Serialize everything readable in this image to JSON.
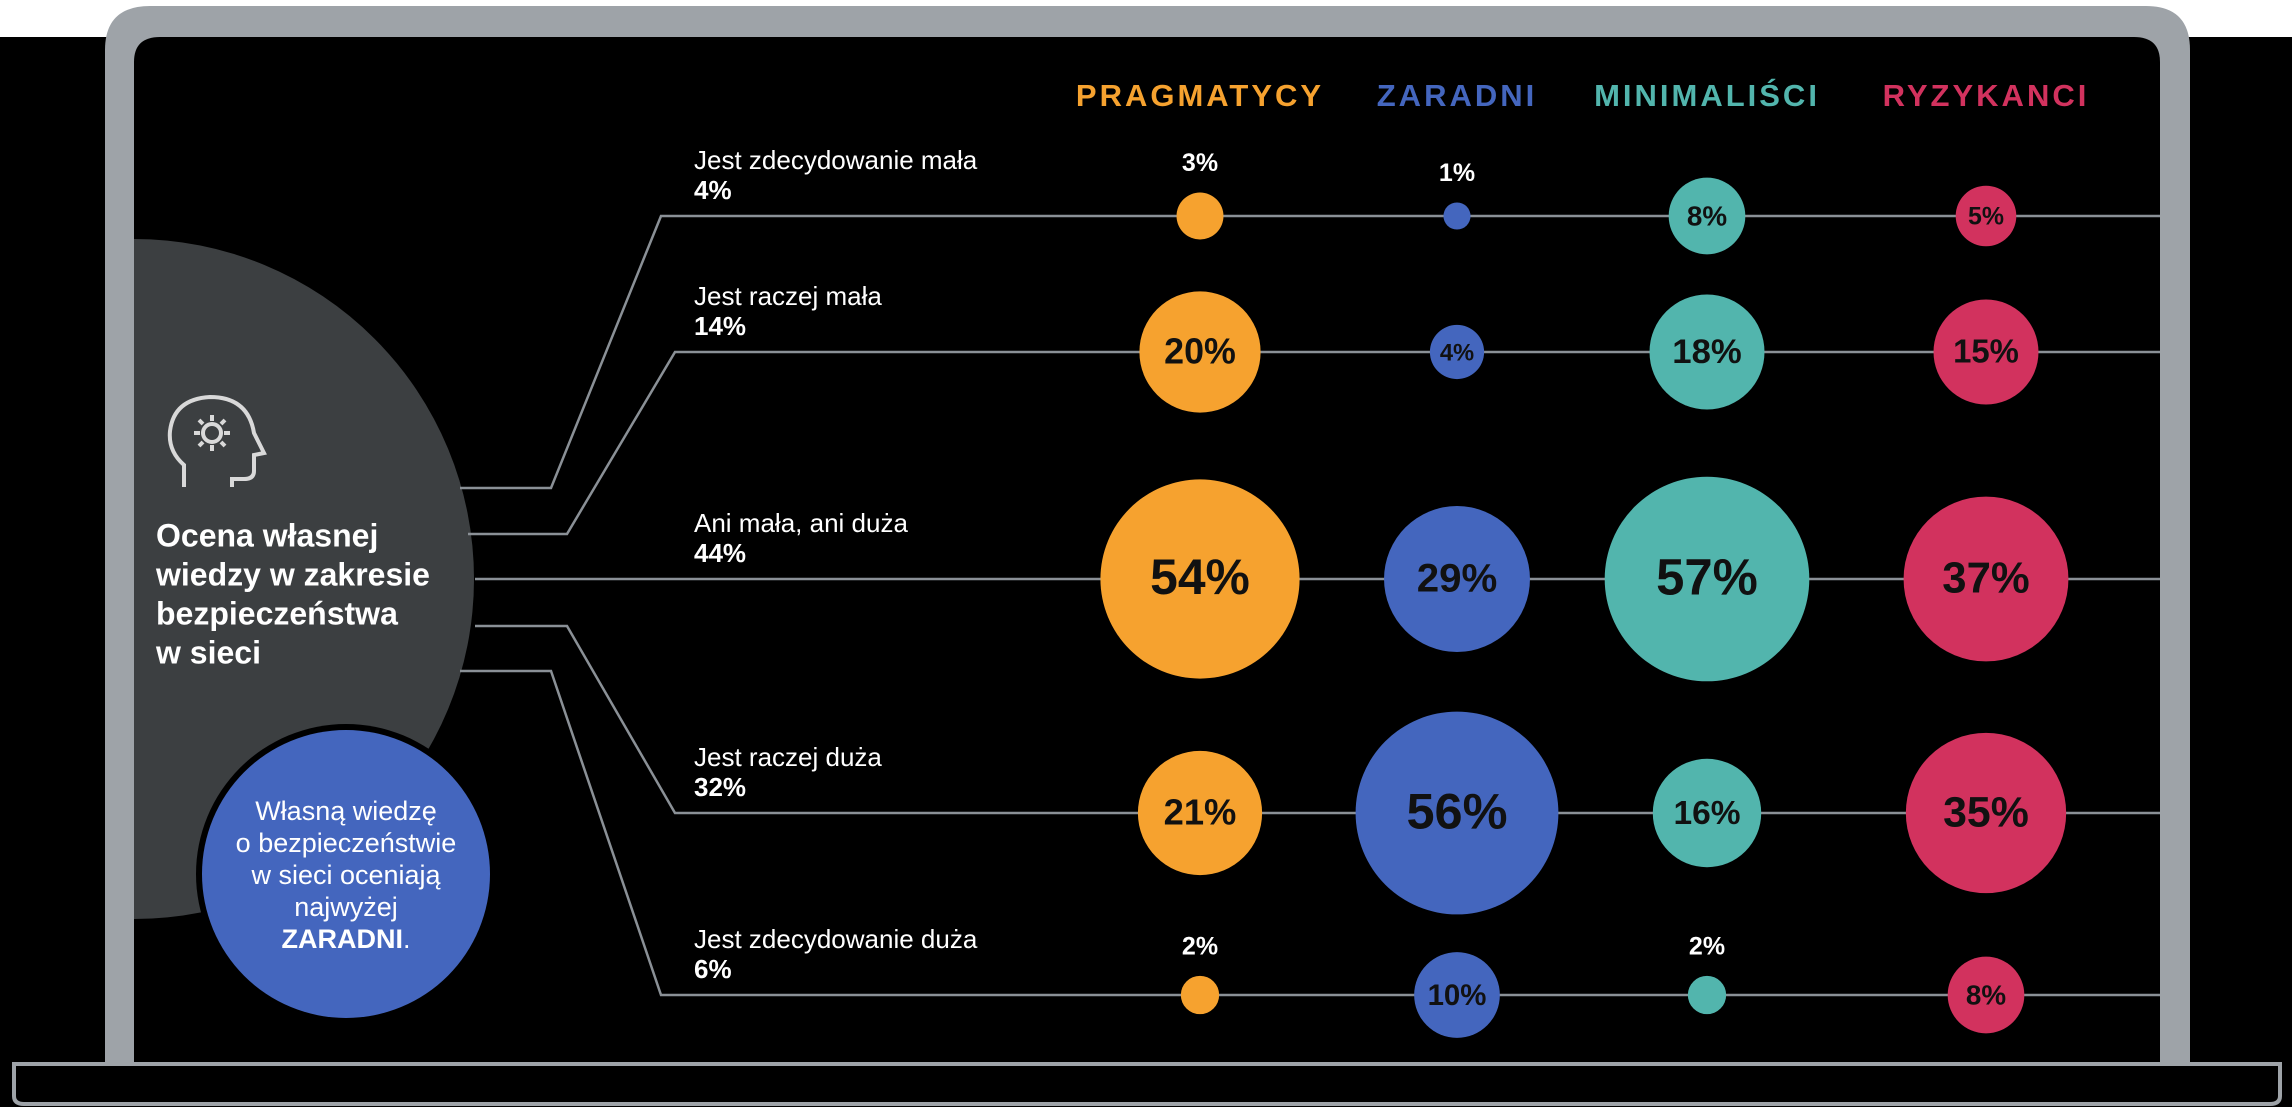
{
  "chart_data": {
    "type": "bubble-grid",
    "title_lines": [
      "Ocena własnej",
      "wiedzy w zakresie",
      "bezpieczeństwa",
      "w sieci"
    ],
    "note": {
      "lines": [
        "Własną wiedzę",
        "o bezpieczeństwie",
        "w sieci oceniają",
        "najwyżej"
      ],
      "highlight": "ZARADNI",
      "end": "."
    },
    "categories": [
      "Jest zdecydowanie mała",
      "Jest raczej mała",
      "Ani mała, ani duża",
      "Jest raczej duża",
      "Jest zdecydowanie duża"
    ],
    "totals": [
      4,
      14,
      44,
      32,
      6
    ],
    "totals_labels": [
      "4%",
      "14%",
      "44%",
      "32%",
      "6%"
    ],
    "series": [
      {
        "name": "PRAGMATYCY",
        "color": "#f6a22f",
        "values": [
          3,
          20,
          54,
          21,
          2
        ],
        "value_labels": [
          "3%",
          "20%",
          "54%",
          "21%",
          "2%"
        ]
      },
      {
        "name": "ZARADNI",
        "color": "#4466be",
        "values": [
          1,
          4,
          29,
          56,
          10
        ],
        "value_labels": [
          "1%",
          "4%",
          "29%",
          "56%",
          "10%"
        ]
      },
      {
        "name": "MINIMALIŚCI",
        "color": "#52b5ad",
        "values": [
          8,
          18,
          57,
          16,
          2
        ],
        "value_labels": [
          "8%",
          "18%",
          "57%",
          "16%",
          "2%"
        ]
      },
      {
        "name": "RYZYKANCI",
        "color": "#d2325e",
        "values": [
          5,
          15,
          37,
          35,
          8
        ],
        "value_labels": [
          "5%",
          "15%",
          "37%",
          "35%",
          "8%"
        ]
      }
    ]
  }
}
